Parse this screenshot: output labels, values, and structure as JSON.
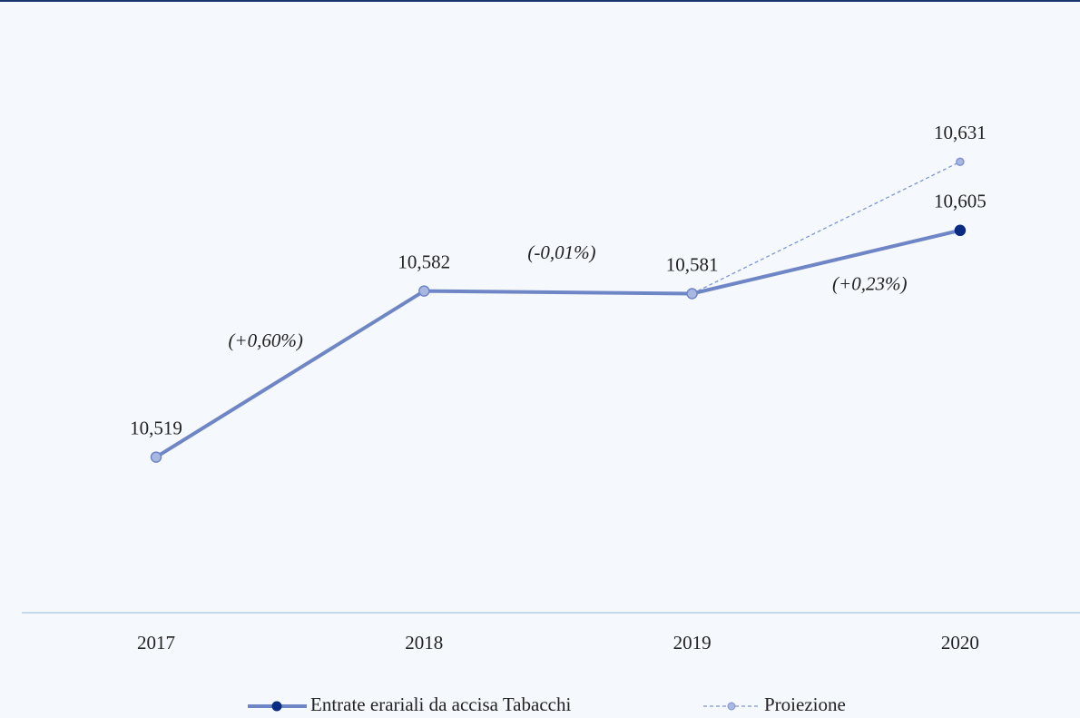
{
  "chart_data": {
    "type": "line",
    "categories": [
      "2017",
      "2018",
      "2019",
      "2020"
    ],
    "series": [
      {
        "name": "Entrate erariali da accisa Tabacchi",
        "color": "#6f86c6",
        "marker_color": "#a9b8e0",
        "last_marker_color": "#0a2b84",
        "dashed": false,
        "values": [
          10519,
          10582,
          10581,
          10605
        ],
        "value_labels": [
          "10,519",
          "10,582",
          "10,581",
          "10,605"
        ]
      },
      {
        "name": "Proiezione",
        "color": "#8095d2",
        "marker_color": "#a9b8e0",
        "dashed": true,
        "values": [
          null,
          null,
          10581,
          10631
        ],
        "value_labels": [
          null,
          null,
          null,
          "10,631"
        ]
      }
    ],
    "annotations": [
      "(+0,60%)",
      "(-0,01%)",
      "(+0,23%)"
    ],
    "ylim": [
      10460,
      10660
    ]
  }
}
